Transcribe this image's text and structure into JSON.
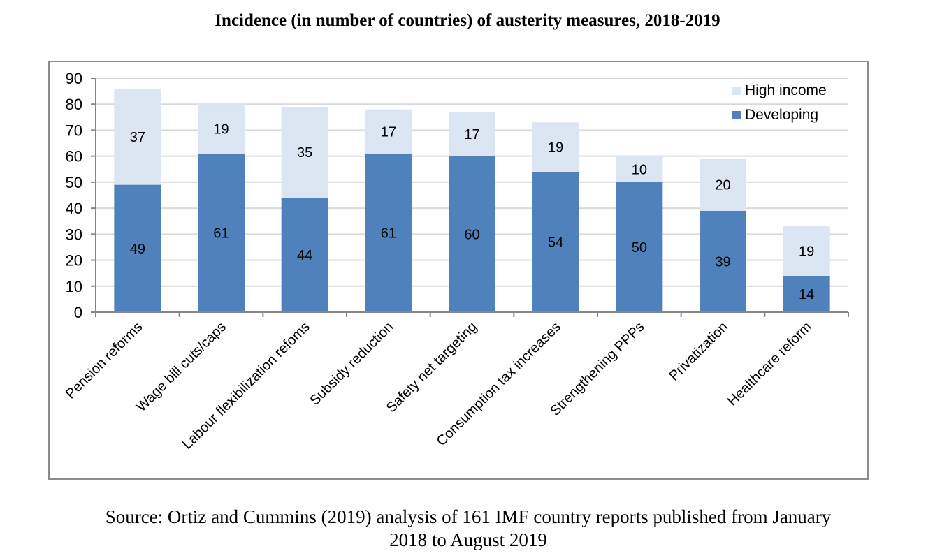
{
  "page": {
    "title": "Incidence (in number of countries) of austerity measures, 2018-2019",
    "source_line1": "Source: Ortiz and Cummins (2019) analysis of 161 IMF country reports published from January",
    "source_line2": "2018 to August 2019"
  },
  "chart_data": {
    "type": "bar",
    "stacked": true,
    "title": "Incidence (in number of countries) of austerity measures, 2018-2019",
    "xlabel": "",
    "ylabel": "",
    "ylim": [
      0,
      90
    ],
    "yticks": [
      0,
      10,
      20,
      30,
      40,
      50,
      60,
      70,
      80,
      90
    ],
    "grid": true,
    "legend_position": "top-right",
    "categories": [
      "Pension reforms",
      "Wage bill cuts/caps",
      "Labour flexibilization refoms",
      "Subsidy reduction",
      "Safety net targeting",
      "Consumption tax increases",
      "Strengthening PPPs",
      "Privatization",
      "Healthcare reform"
    ],
    "series": [
      {
        "name": "Developing",
        "color": "#4F81BD",
        "values": [
          49,
          61,
          44,
          61,
          60,
          54,
          50,
          39,
          14
        ]
      },
      {
        "name": "High income",
        "color": "#DCE6F2",
        "values": [
          37,
          19,
          35,
          17,
          17,
          19,
          10,
          20,
          19
        ]
      }
    ],
    "legend": [
      "High income",
      "Developing"
    ]
  }
}
